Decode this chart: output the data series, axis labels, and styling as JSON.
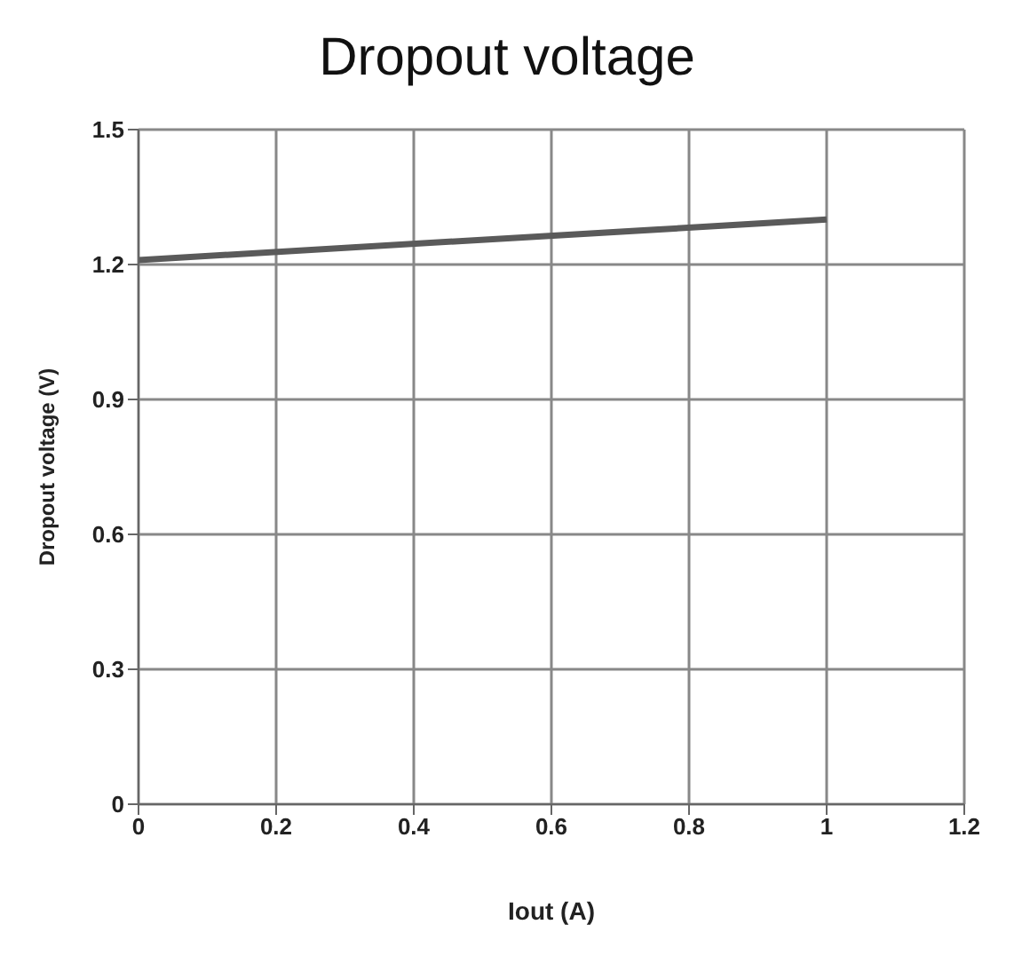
{
  "chart_data": {
    "type": "line",
    "title": "Dropout voltage",
    "xlabel": "Iout (A)",
    "ylabel": "Dropout voltage  (V)",
    "x": [
      0,
      1
    ],
    "series": [
      {
        "color": "#5a5a5a",
        "values": [
          1.21,
          1.3
        ]
      }
    ],
    "xlim": [
      0,
      1.2
    ],
    "xticks": [
      0,
      0.2,
      0.4,
      0.6,
      0.8,
      1,
      1.2
    ],
    "ylim": [
      0,
      1.5
    ],
    "yticks": [
      0,
      0.3,
      0.6,
      0.9,
      1.2,
      1.5
    ],
    "grid": true,
    "legend": false,
    "marker": "none",
    "line_style": "solid"
  }
}
